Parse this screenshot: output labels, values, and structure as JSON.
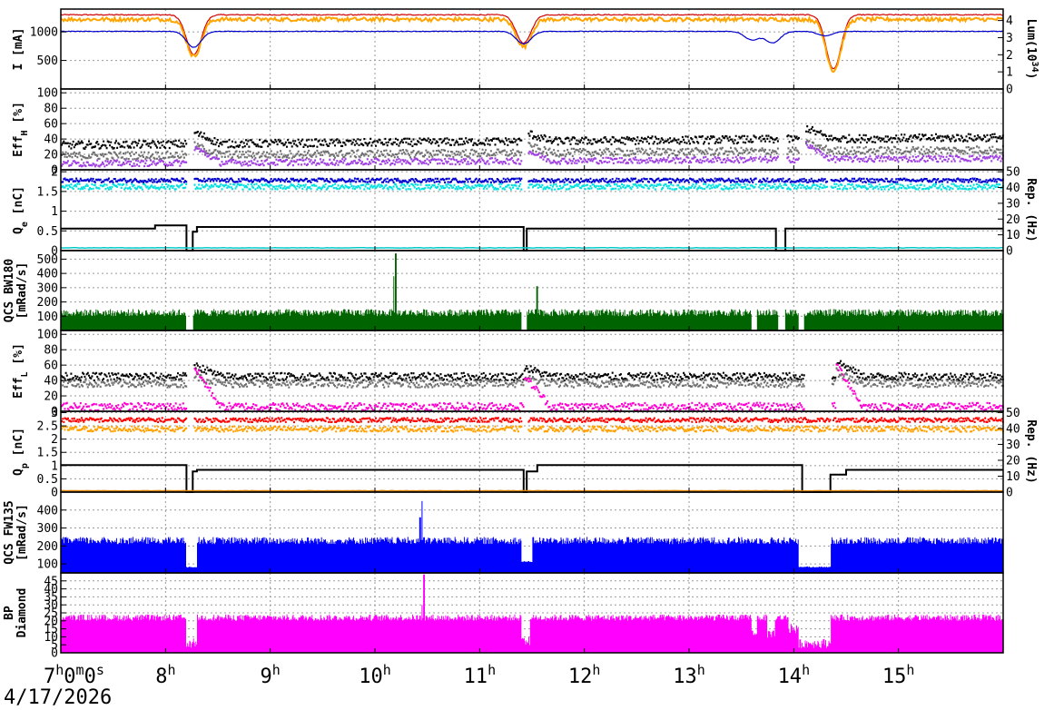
{
  "date": "4/17/2026",
  "chart_data": {
    "type": "line",
    "x_axis": {
      "unit": "hour",
      "range": [
        7.0,
        16.0
      ],
      "ticks": [
        {
          "value": 7,
          "label": "7",
          "extra": [
            [
              "h",
              "sup"
            ],
            [
              "0",
              ""
            ],
            [
              "m",
              "sup"
            ],
            [
              "0",
              ""
            ],
            [
              "s",
              "sup"
            ]
          ]
        },
        {
          "value": 8,
          "label": "8",
          "extra": [
            [
              "h",
              "sup"
            ]
          ]
        },
        {
          "value": 9,
          "label": "9",
          "extra": [
            [
              "h",
              "sup"
            ]
          ]
        },
        {
          "value": 10,
          "label": "10",
          "extra": [
            [
              "h",
              "sup"
            ]
          ]
        },
        {
          "value": 11,
          "label": "11",
          "extra": [
            [
              "h",
              "sup"
            ]
          ]
        },
        {
          "value": 12,
          "label": "12",
          "extra": [
            [
              "h",
              "sup"
            ]
          ]
        },
        {
          "value": 13,
          "label": "13",
          "extra": [
            [
              "h",
              "sup"
            ]
          ]
        },
        {
          "value": 14,
          "label": "14",
          "extra": [
            [
              "h",
              "sup"
            ]
          ]
        },
        {
          "value": 15,
          "label": "15",
          "extra": [
            [
              "h",
              "sup"
            ]
          ]
        }
      ]
    },
    "panels": [
      {
        "id": "beam-current",
        "ylabel_left": [
          [
            "I",
            ""
          ],
          [
            " [mA]",
            ""
          ]
        ],
        "ylabel_right": [
          [
            "Lum(10",
            ""
          ],
          [
            "34",
            "sup"
          ],
          [
            ")",
            ""
          ]
        ],
        "ylim": [
          0,
          1400
        ],
        "yticks": [
          "500",
          "1000"
        ],
        "ytick_values": [
          500,
          1000
        ],
        "rlim": [
          0,
          4.67
        ],
        "rticks": [
          "0",
          "1",
          "2",
          "3",
          "4"
        ],
        "rtick_values": [
          0,
          1,
          2,
          3,
          4
        ],
        "series": [
          {
            "color": "#d40000",
            "axis": "left",
            "base": 1300,
            "noise": 8,
            "dips": [
              [
                8.27,
                700
              ],
              [
                11.42,
                500
              ],
              [
                14.38,
                950
              ]
            ],
            "gaps": []
          },
          {
            "color": "#ffa500",
            "axis": "left",
            "base": 1220,
            "noise": 35,
            "width": 2,
            "dips": [
              [
                8.27,
                650
              ],
              [
                11.42,
                480
              ],
              [
                14.38,
                900
              ]
            ],
            "gaps": []
          },
          {
            "color": "#0000cc",
            "axis": "left",
            "base": 1010,
            "noise": 5,
            "dips": [
              [
                8.27,
                280
              ],
              [
                11.42,
                220
              ],
              [
                13.6,
                150
              ],
              [
                13.8,
                200
              ],
              [
                14.3,
                80
              ]
            ],
            "gaps": []
          }
        ]
      },
      {
        "id": "eff-h",
        "ylabel_left": [
          [
            "Eff",
            ""
          ],
          [
            "H",
            "sub"
          ],
          [
            " [%]",
            ""
          ]
        ],
        "ylim": [
          0,
          105
        ],
        "yticks": [
          "0",
          "20",
          "40",
          "60",
          "80",
          "100"
        ],
        "ytick_values": [
          0,
          20,
          40,
          60,
          80,
          100
        ],
        "series": [
          {
            "color": "#000000",
            "style": "scatter",
            "base": 32,
            "noise": 5,
            "trend": 10,
            "jumps": [
              [
                8.27,
                15
              ],
              [
                11.42,
                12
              ],
              [
                14.1,
                15
              ]
            ],
            "gaps": [
              [
                8.2,
                8.26
              ],
              [
                11.4,
                11.45
              ],
              [
                13.63,
                13.65
              ],
              [
                13.85,
                13.92
              ],
              [
                14.05,
                14.1
              ]
            ]
          },
          {
            "color": "#707070",
            "style": "scatter",
            "base": 18,
            "noise": 5,
            "trend": 8,
            "jumps": [
              [
                8.27,
                12
              ],
              [
                11.42,
                10
              ],
              [
                14.1,
                10
              ]
            ],
            "gaps": [
              [
                8.2,
                8.26
              ],
              [
                11.4,
                11.45
              ],
              [
                13.63,
                13.65
              ],
              [
                13.85,
                13.92
              ],
              [
                14.05,
                14.1
              ]
            ]
          },
          {
            "color": "#a040e0",
            "style": "scatter",
            "base": 8,
            "noise": 4,
            "trend": 7,
            "jumps": [
              [
                8.27,
                20
              ],
              [
                11.42,
                15
              ],
              [
                14.1,
                20
              ]
            ],
            "gaps": [
              [
                8.2,
                8.26
              ],
              [
                11.4,
                11.45
              ],
              [
                13.63,
                13.65
              ],
              [
                13.85,
                13.92
              ],
              [
                14.05,
                14.1
              ]
            ]
          }
        ]
      },
      {
        "id": "qe",
        "ylabel_left": [
          [
            "Q",
            ""
          ],
          [
            "e",
            "sub"
          ],
          [
            " [nC]",
            ""
          ]
        ],
        "ylabel_right": [
          [
            "Rep. (Hz)",
            ""
          ]
        ],
        "ylim": [
          0,
          2.05
        ],
        "yticks": [
          "0",
          "0.5",
          "1",
          "1.5",
          "2"
        ],
        "ytick_values": [
          0,
          0.5,
          1,
          1.5,
          2
        ],
        "rlim": [
          0,
          51.25
        ],
        "rticks": [
          "0",
          "10",
          "20",
          "30",
          "40",
          "50"
        ],
        "rtick_values": [
          0,
          10,
          20,
          30,
          40,
          50
        ],
        "series": [
          {
            "color": "#00e0e0",
            "style": "scatter",
            "base": 1.62,
            "noise": 0.07,
            "gaps": [
              [
                8.2,
                8.26
              ],
              [
                11.4,
                11.45
              ],
              [
                13.63,
                13.65
              ],
              [
                14.32,
                14.34
              ]
            ]
          },
          {
            "color": "#0000d0",
            "style": "scatter",
            "base": 1.78,
            "noise": 0.05,
            "gaps": [
              [
                8.2,
                8.26
              ],
              [
                11.4,
                11.45
              ],
              [
                13.63,
                13.65
              ],
              [
                14.32,
                14.34
              ]
            ]
          },
          {
            "color": "#000000",
            "style": "step",
            "axis": "right",
            "levels": [
              [
                7.0,
                14
              ],
              [
                7.9,
                16
              ],
              [
                8.2,
                0
              ],
              [
                8.26,
                12
              ],
              [
                8.3,
                15
              ],
              [
                11.42,
                0
              ],
              [
                11.45,
                14
              ],
              [
                13.83,
                0
              ],
              [
                13.92,
                14
              ],
              [
                16.0,
                14
              ]
            ]
          },
          {
            "color": "#00c8c8",
            "style": "flat",
            "base": 0.07,
            "noise": 0.01,
            "gaps": []
          }
        ]
      },
      {
        "id": "qcs-bw180",
        "ylabel_left": [
          [
            "QCS BW180",
            ""
          ],
          [
            "[mRad/s]",
            ""
          ]
        ],
        "ylim": [
          0,
          560
        ],
        "yticks": [
          "100",
          "200",
          "300",
          "400",
          "500"
        ],
        "ytick_values": [
          100,
          200,
          300,
          400,
          500
        ],
        "series": [
          {
            "color": "#006400",
            "style": "spiky",
            "base": 100,
            "noise": 50,
            "spikes": [
              [
                10.2,
                540
              ],
              [
                10.18,
                380
              ],
              [
                11.55,
                310
              ]
            ],
            "gaps": [
              [
                8.2,
                8.26
              ],
              [
                11.4,
                11.45
              ],
              [
                13.6,
                13.65
              ],
              [
                13.85,
                13.92
              ],
              [
                14.05,
                14.1
              ]
            ]
          }
        ]
      },
      {
        "id": "eff-l",
        "ylabel_left": [
          [
            "Eff",
            ""
          ],
          [
            "L",
            "sub"
          ],
          [
            " [%]",
            ""
          ]
        ],
        "ylim": [
          0,
          105
        ],
        "yticks": [
          "0",
          "20",
          "40",
          "60",
          "80",
          "100"
        ],
        "ytick_values": [
          0,
          20,
          40,
          60,
          80,
          100
        ],
        "series": [
          {
            "color": "#000000",
            "style": "scatter",
            "base": 45,
            "noise": 5,
            "jumps": [
              [
                8.27,
                15
              ],
              [
                11.42,
                12
              ],
              [
                14.4,
                20
              ]
            ],
            "gaps": [
              [
                8.2,
                8.26
              ],
              [
                14.1,
                14.35
              ]
            ]
          },
          {
            "color": "#707070",
            "style": "scatter",
            "base": 36,
            "noise": 5,
            "jumps": [
              [
                8.27,
                10
              ],
              [
                11.42,
                8
              ],
              [
                14.4,
                15
              ]
            ],
            "gaps": [
              [
                8.2,
                8.26
              ],
              [
                14.1,
                14.35
              ]
            ]
          },
          {
            "color": "#ff00d0",
            "style": "scatter",
            "base": 6,
            "noise": 5,
            "jumps": [
              [
                8.27,
                50
              ],
              [
                11.42,
                40
              ],
              [
                14.4,
                55
              ]
            ],
            "gaps": [
              [
                8.2,
                8.26
              ],
              [
                14.1,
                14.35
              ]
            ]
          }
        ]
      },
      {
        "id": "qp",
        "ylabel_left": [
          [
            "Q",
            ""
          ],
          [
            "p",
            "sub"
          ],
          [
            " [nC]",
            ""
          ]
        ],
        "ylabel_right": [
          [
            "Rep. (Hz)",
            ""
          ]
        ],
        "ylim": [
          0,
          3.05
        ],
        "yticks": [
          "0",
          "0.5",
          "1",
          "1.5",
          "2",
          "2.5",
          "3"
        ],
        "ytick_values": [
          0,
          0.5,
          1,
          1.5,
          2,
          2.5,
          3
        ],
        "rlim": [
          0,
          50.8
        ],
        "rticks": [
          "0",
          "10",
          "20",
          "30",
          "40",
          "50"
        ],
        "rtick_values": [
          0,
          10,
          20,
          30,
          40,
          50
        ],
        "series": [
          {
            "color": "#ffa000",
            "style": "scatter",
            "base": 2.38,
            "noise": 0.1,
            "gaps": [
              [
                8.2,
                8.26
              ],
              [
                11.4,
                11.45
              ],
              [
                14.35,
                14.37
              ]
            ]
          },
          {
            "color": "#ff0000",
            "style": "scatter",
            "base": 2.72,
            "noise": 0.08,
            "gaps": [
              [
                8.2,
                8.26
              ],
              [
                11.4,
                11.45
              ],
              [
                14.35,
                14.37
              ]
            ]
          },
          {
            "color": "#000000",
            "style": "step",
            "axis": "right",
            "levels": [
              [
                7.0,
                17
              ],
              [
                8.2,
                0
              ],
              [
                8.26,
                13
              ],
              [
                8.3,
                14
              ],
              [
                11.42,
                0
              ],
              [
                11.45,
                13
              ],
              [
                11.55,
                17
              ],
              [
                14.08,
                0
              ],
              [
                14.35,
                11
              ],
              [
                14.5,
                14
              ],
              [
                16.0,
                14
              ]
            ]
          },
          {
            "color": "#e08000",
            "style": "flat",
            "base": 0.05,
            "noise": 0.01,
            "gaps": []
          }
        ]
      },
      {
        "id": "qcs-fw135",
        "ylabel_left": [
          [
            "QCS FW135",
            ""
          ],
          [
            "[mRad/s]",
            ""
          ]
        ],
        "ylim": [
          50,
          500
        ],
        "yticks": [
          "100",
          "200",
          "300",
          "400"
        ],
        "ytick_values": [
          100,
          200,
          300,
          400
        ],
        "series": [
          {
            "color": "#0000ff",
            "style": "spiky",
            "base": 210,
            "noise": 40,
            "spikes": [
              [
                10.45,
                450
              ],
              [
                10.43,
                360
              ]
            ],
            "drops": [
              [
                8.2,
                8.3,
                80
              ],
              [
                11.4,
                11.5,
                110
              ],
              [
                14.05,
                14.35,
                80
              ]
            ],
            "gaps": []
          }
        ]
      },
      {
        "id": "bp-diamond",
        "ylabel_left": [
          [
            "BP",
            ""
          ],
          [
            "Diamond",
            ""
          ]
        ],
        "ylim": [
          0,
          50
        ],
        "yticks": [
          "0",
          "5",
          "10",
          "15",
          "20",
          "25",
          "30",
          "35",
          "40",
          "45"
        ],
        "ytick_values": [
          0,
          5,
          10,
          15,
          20,
          25,
          30,
          35,
          40,
          45
        ],
        "series": [
          {
            "color": "#ff00ff",
            "style": "spiky",
            "base": 20,
            "noise": 4,
            "spikes": [
              [
                10.47,
                49
              ],
              [
                10.45,
                30
              ]
            ],
            "drops": [
              [
                8.2,
                8.3,
                3
              ],
              [
                11.4,
                11.48,
                4
              ],
              [
                13.6,
                13.65,
                10
              ],
              [
                13.75,
                13.82,
                8
              ],
              [
                13.95,
                14.05,
                12
              ],
              [
                14.05,
                14.35,
                3
              ]
            ],
            "gaps": []
          }
        ]
      }
    ]
  }
}
